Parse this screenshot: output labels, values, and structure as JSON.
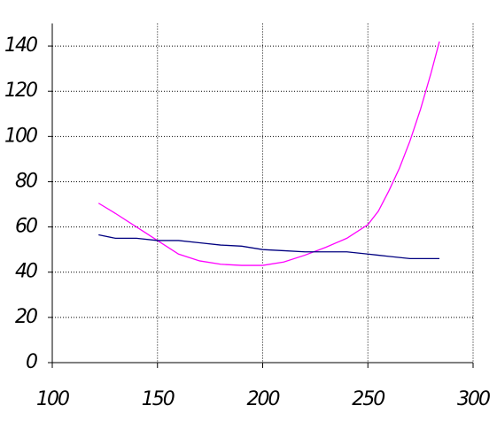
{
  "chart_data": {
    "type": "line",
    "x": [
      122,
      130,
      140,
      150,
      160,
      170,
      180,
      190,
      200,
      210,
      220,
      230,
      240,
      250,
      255,
      260,
      265,
      270,
      275,
      280,
      284
    ],
    "series": [
      {
        "color": "#ff00ff",
        "values": [
          70.5,
          66,
          60,
          54,
          48,
          45,
          43.5,
          43,
          43,
          44.5,
          47.5,
          51,
          55,
          61,
          67,
          76,
          86,
          98,
          112,
          128,
          142
        ]
      },
      {
        "color": "#000080",
        "values": [
          56.5,
          55,
          55,
          54,
          54,
          53,
          52,
          51.5,
          50,
          49.5,
          49,
          49,
          49,
          48,
          47.5,
          47,
          46.5,
          46,
          46,
          46,
          46
        ]
      }
    ],
    "xlim": [
      100,
      300
    ],
    "ylim": [
      0,
      150
    ],
    "xticks": [
      100,
      150,
      200,
      250,
      300
    ],
    "yticks": [
      0,
      20,
      40,
      60,
      80,
      100,
      120,
      140
    ],
    "grid": true
  }
}
